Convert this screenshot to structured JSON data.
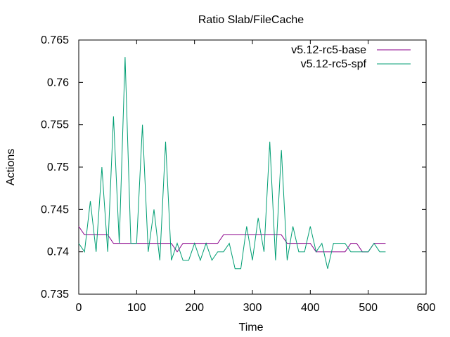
{
  "chart_data": {
    "type": "line",
    "title": "Ratio Slab/FileCache",
    "xlabel": "Time",
    "ylabel": "Actions",
    "xlim": [
      0,
      600
    ],
    "ylim": [
      0.735,
      0.765
    ],
    "xticks": [
      0,
      100,
      200,
      300,
      400,
      500,
      600
    ],
    "yticks": [
      0.735,
      0.74,
      0.745,
      0.75,
      0.755,
      0.76,
      0.765
    ],
    "xtick_labels": [
      "0",
      "100",
      "200",
      "300",
      "400",
      "500",
      "600"
    ],
    "ytick_labels": [
      "0.735",
      "0.74",
      "0.745",
      "0.75",
      "0.755",
      "0.76",
      "0.765"
    ],
    "legend_position": "top-right",
    "grid": false,
    "series": [
      {
        "name": "v5.12-rc5-base",
        "color": "#8b008b",
        "x": [
          0,
          10,
          20,
          30,
          40,
          50,
          60,
          70,
          80,
          90,
          100,
          110,
          120,
          130,
          140,
          150,
          160,
          170,
          180,
          190,
          200,
          210,
          220,
          230,
          240,
          250,
          260,
          270,
          280,
          290,
          300,
          310,
          320,
          330,
          340,
          350,
          360,
          370,
          380,
          390,
          400,
          410,
          420,
          430,
          440,
          450,
          460,
          470,
          480,
          490,
          500,
          510,
          520,
          530
        ],
        "y": [
          0.743,
          0.742,
          0.742,
          0.742,
          0.742,
          0.742,
          0.741,
          0.741,
          0.741,
          0.741,
          0.741,
          0.741,
          0.741,
          0.741,
          0.741,
          0.741,
          0.741,
          0.74,
          0.741,
          0.741,
          0.741,
          0.741,
          0.741,
          0.741,
          0.741,
          0.742,
          0.742,
          0.742,
          0.742,
          0.742,
          0.742,
          0.742,
          0.742,
          0.742,
          0.742,
          0.742,
          0.741,
          0.741,
          0.741,
          0.741,
          0.741,
          0.74,
          0.74,
          0.74,
          0.74,
          0.74,
          0.74,
          0.741,
          0.741,
          0.74,
          0.74,
          0.741,
          0.741,
          0.741
        ]
      },
      {
        "name": "v5.12-rc5-spf",
        "color": "#009e73",
        "x": [
          0,
          10,
          20,
          30,
          40,
          50,
          60,
          70,
          80,
          90,
          100,
          110,
          120,
          130,
          140,
          150,
          160,
          170,
          180,
          190,
          200,
          210,
          220,
          230,
          240,
          250,
          260,
          270,
          280,
          290,
          300,
          310,
          320,
          330,
          340,
          350,
          360,
          370,
          380,
          390,
          400,
          410,
          420,
          430,
          440,
          450,
          460,
          470,
          480,
          490,
          500,
          510,
          520,
          530
        ],
        "y": [
          0.741,
          0.74,
          0.746,
          0.74,
          0.75,
          0.74,
          0.756,
          0.741,
          0.763,
          0.741,
          0.741,
          0.755,
          0.74,
          0.745,
          0.739,
          0.753,
          0.739,
          0.741,
          0.739,
          0.739,
          0.741,
          0.739,
          0.741,
          0.739,
          0.74,
          0.74,
          0.741,
          0.738,
          0.738,
          0.743,
          0.739,
          0.744,
          0.74,
          0.753,
          0.739,
          0.752,
          0.739,
          0.743,
          0.74,
          0.74,
          0.743,
          0.74,
          0.741,
          0.738,
          0.741,
          0.741,
          0.741,
          0.74,
          0.74,
          0.74,
          0.74,
          0.741,
          0.74,
          0.74
        ]
      }
    ]
  }
}
